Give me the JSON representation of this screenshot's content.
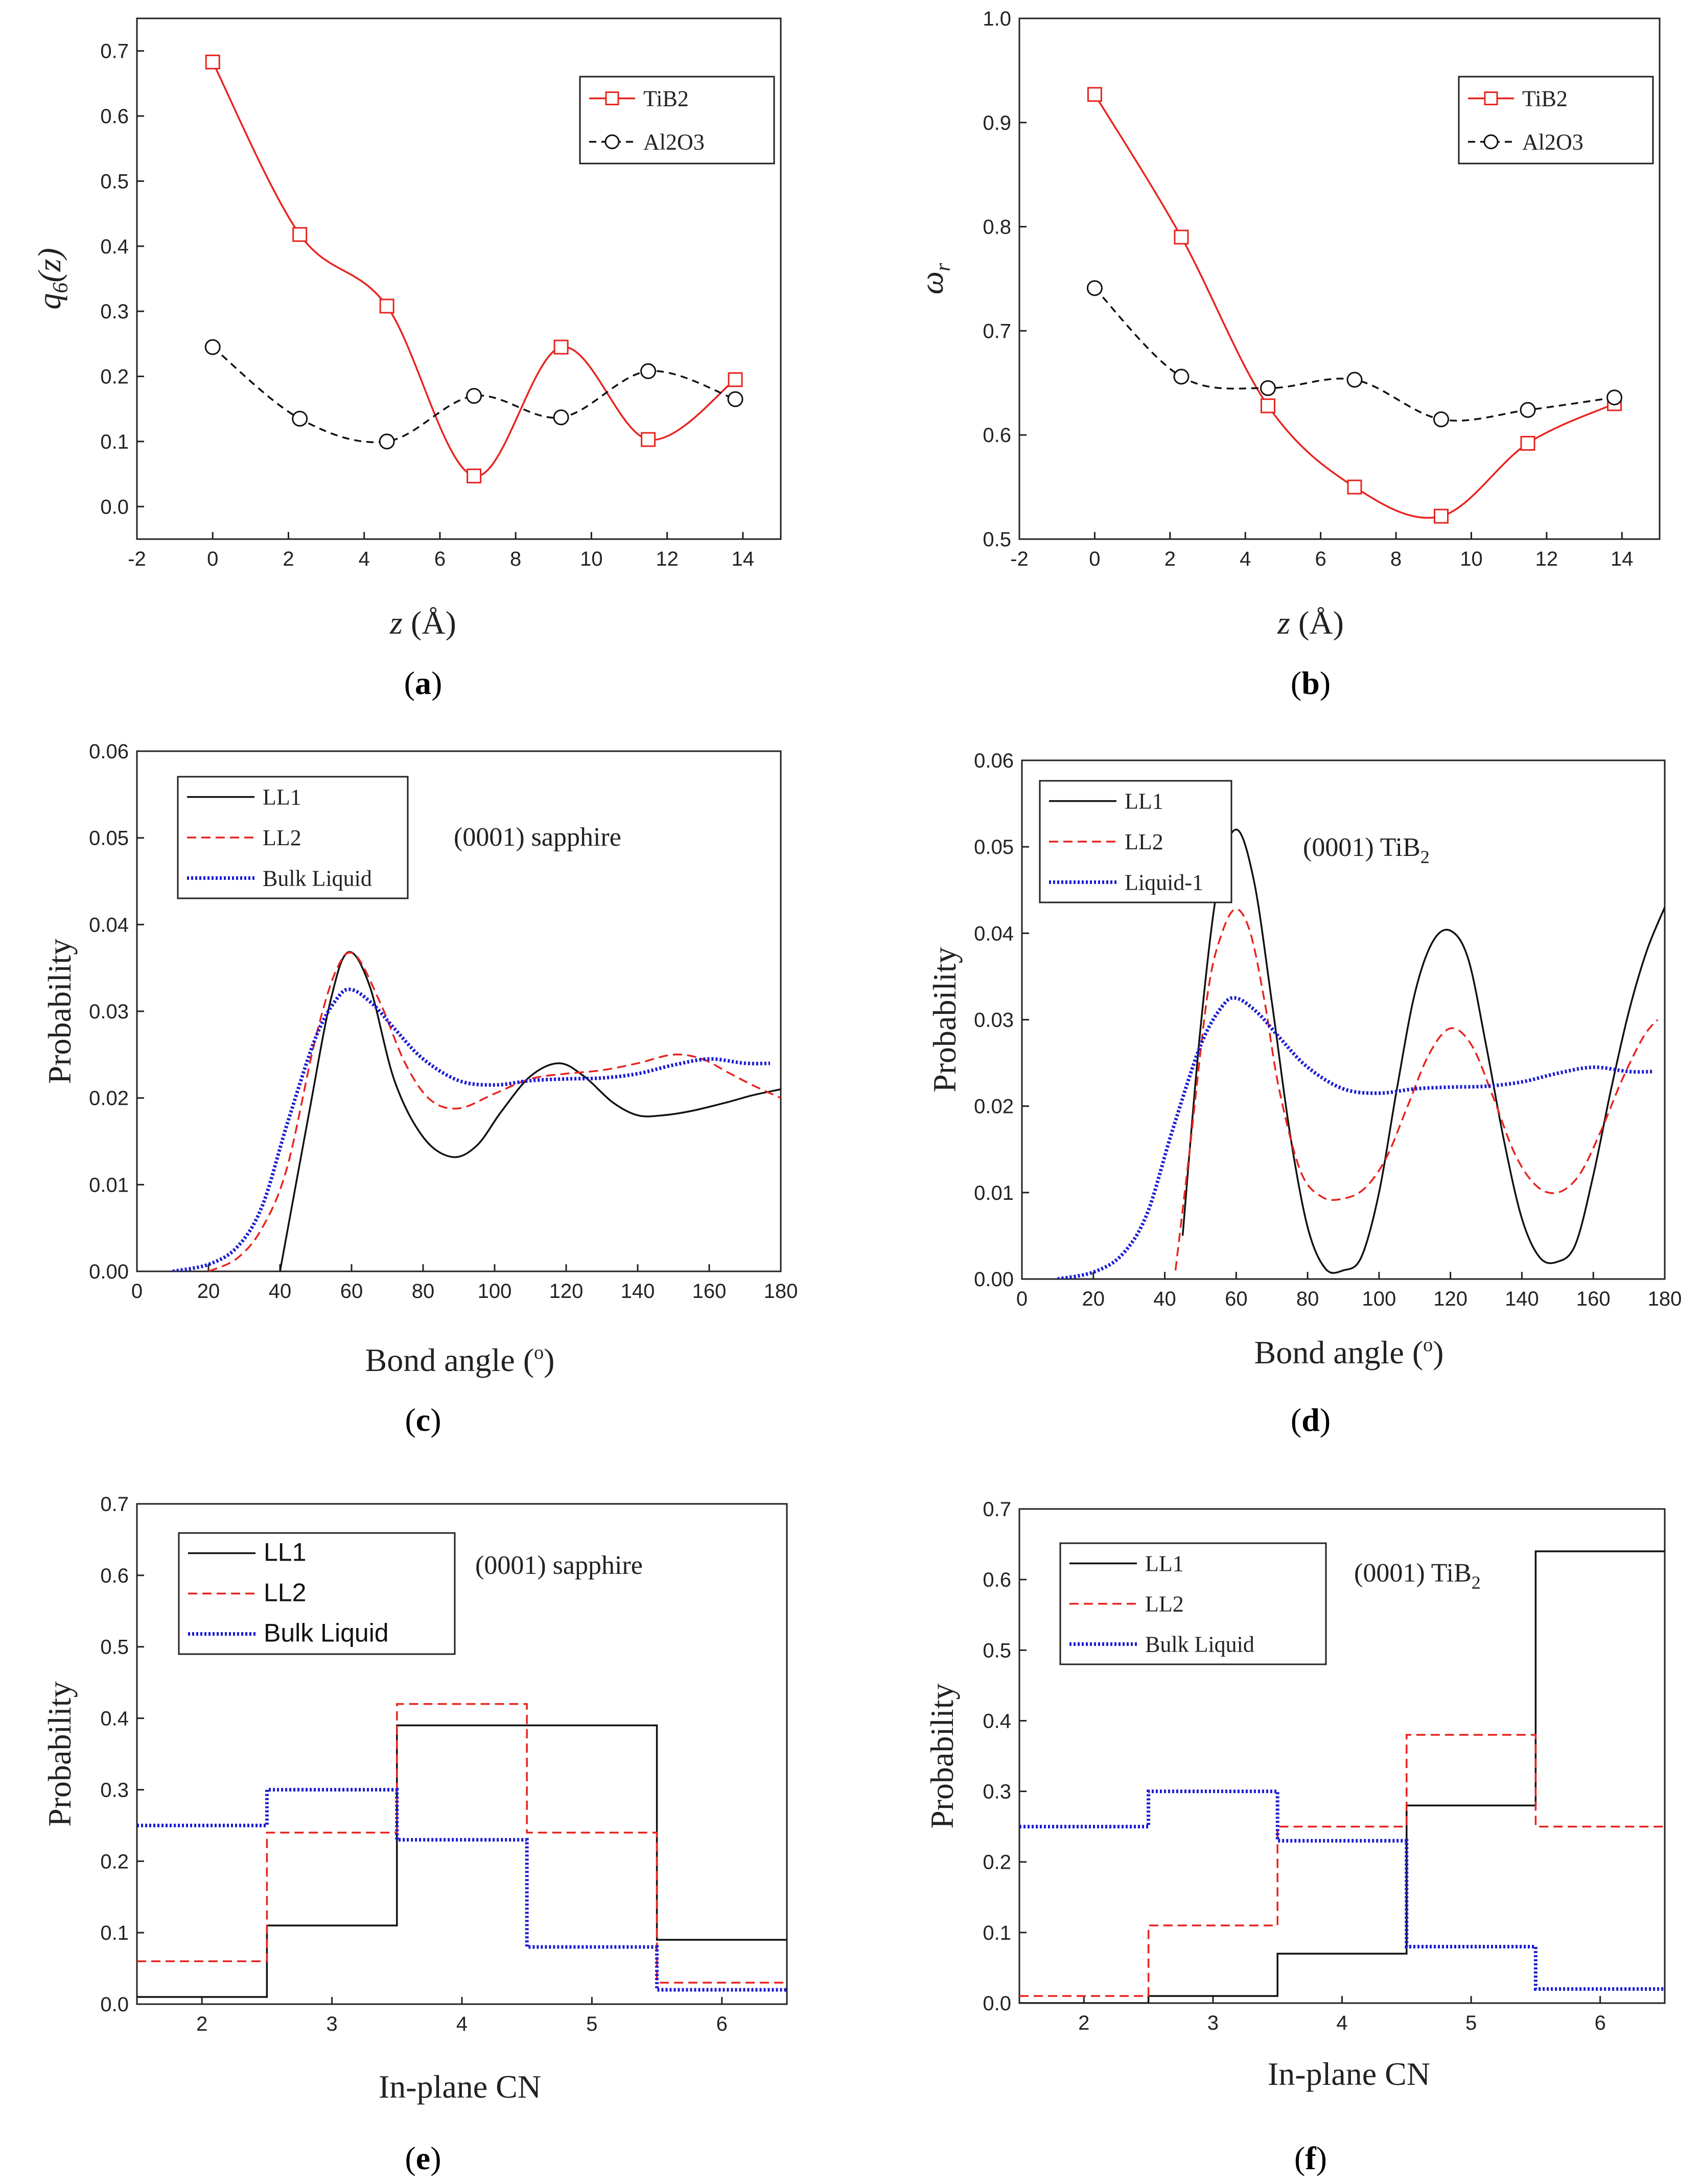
{
  "chart_data": [
    {
      "id": "a",
      "type": "line",
      "panel_label": "(a)",
      "xlabel_var": "z",
      "xlabel_unit": " (Å)",
      "ylabel_var": "q",
      "ylabel_sub": "6",
      "ylabel_rest": "(z)",
      "xlim": [
        -2,
        15
      ],
      "ylim": [
        -0.05,
        0.75
      ],
      "xticks": [
        -2,
        0,
        2,
        4,
        6,
        8,
        10,
        12,
        14
      ],
      "yticks": [
        0.0,
        0.1,
        0.2,
        0.3,
        0.4,
        0.5,
        0.6,
        0.7
      ],
      "ytick_labels": [
        "0.0",
        "0.1",
        "0.2",
        "0.3",
        "0.4",
        "0.5",
        "0.6",
        "0.7"
      ],
      "legend": [
        {
          "name": "TiB2",
          "color": "#e8231e",
          "dash": "",
          "marker": "square",
          "font": "serif"
        },
        {
          "name": "Al2O3",
          "color": "#111111",
          "dash": "14,10",
          "marker": "circle",
          "font": "serif"
        }
      ],
      "series": [
        {
          "name": "TiB2",
          "color": "#e8231e",
          "dash": "",
          "marker": "square",
          "smooth": true,
          "x": [
            0,
            2.3,
            4.6,
            6.9,
            9.2,
            11.5,
            13.8
          ],
          "y": [
            0.683,
            0.418,
            0.308,
            0.047,
            0.245,
            0.103,
            0.195
          ]
        },
        {
          "name": "Al2O3",
          "color": "#111111",
          "dash": "14,10",
          "marker": "circle",
          "smooth": true,
          "x": [
            0,
            2.3,
            4.6,
            6.9,
            9.2,
            11.5,
            13.8
          ],
          "y": [
            0.245,
            0.135,
            0.1,
            0.17,
            0.137,
            0.208,
            0.165
          ]
        }
      ]
    },
    {
      "id": "b",
      "type": "line",
      "panel_label": "(b)",
      "xlabel_var": "z",
      "xlabel_unit": " (Å)",
      "ylabel_var": "ω",
      "ylabel_sub": "r",
      "ylabel_rest": "",
      "xlim": [
        -2,
        15
      ],
      "ylim": [
        0.5,
        1.0
      ],
      "xticks": [
        -2,
        0,
        2,
        4,
        6,
        8,
        10,
        12,
        14
      ],
      "yticks": [
        0.5,
        0.6,
        0.7,
        0.8,
        0.9,
        1.0
      ],
      "ytick_labels": [
        "0.5",
        "0.6",
        "0.7",
        "0.8",
        "0.9",
        "1.0"
      ],
      "legend": [
        {
          "name": "TiB2",
          "color": "#e8231e",
          "dash": "",
          "marker": "square",
          "font": "serif"
        },
        {
          "name": "Al2O3",
          "color": "#111111",
          "dash": "14,10",
          "marker": "circle",
          "font": "serif"
        }
      ],
      "series": [
        {
          "name": "TiB2",
          "color": "#e8231e",
          "dash": "",
          "marker": "square",
          "smooth": true,
          "x": [
            0,
            2.3,
            4.6,
            6.9,
            9.2,
            11.5,
            13.8
          ],
          "y": [
            0.927,
            0.79,
            0.628,
            0.55,
            0.522,
            0.592,
            0.63
          ]
        },
        {
          "name": "Al2O3",
          "color": "#111111",
          "dash": "14,10",
          "marker": "circle",
          "smooth": true,
          "x": [
            0,
            2.3,
            4.6,
            6.9,
            9.2,
            11.5,
            13.8
          ],
          "y": [
            0.741,
            0.656,
            0.645,
            0.653,
            0.615,
            0.624,
            0.636
          ]
        }
      ]
    },
    {
      "id": "c",
      "type": "line",
      "panel_label": "(c)",
      "xlabel": "Bond angle (",
      "xlabel_sup": "o",
      "xlabel_end": ")",
      "ylabel": "Probability",
      "annotation": "(0001) sapphire",
      "annotation_sub": "",
      "xlim": [
        0,
        180
      ],
      "ylim": [
        0,
        0.06
      ],
      "xticks": [
        0,
        20,
        40,
        60,
        80,
        100,
        120,
        140,
        160,
        180
      ],
      "yticks": [
        0,
        0.01,
        0.02,
        0.03,
        0.04,
        0.05,
        0.06
      ],
      "ytick_labels": [
        "0.00",
        "0.01",
        "0.02",
        "0.03",
        "0.04",
        "0.05",
        "0.06"
      ],
      "legend": [
        {
          "name": "LL1",
          "color": "#111111",
          "dash": "",
          "font": "serif"
        },
        {
          "name": "LL2",
          "color": "#e8231e",
          "dash": "18,10",
          "font": "serif"
        },
        {
          "name": "Bulk Liquid",
          "color": "#1a1ad6",
          "dash": "4,4",
          "width": 7,
          "font": "serif"
        }
      ],
      "series": [
        {
          "name": "LL1",
          "color": "#111111",
          "dash": "",
          "width": 3.5,
          "smooth": true,
          "x": [
            40,
            48,
            54,
            59,
            65,
            72,
            80,
            88,
            95,
            102,
            110,
            118,
            125,
            133,
            140,
            147,
            155,
            165,
            172,
            180
          ],
          "y": [
            0,
            0.018,
            0.031,
            0.0368,
            0.033,
            0.022,
            0.0155,
            0.0132,
            0.0145,
            0.0185,
            0.0225,
            0.024,
            0.0225,
            0.0195,
            0.018,
            0.018,
            0.0185,
            0.0195,
            0.0203,
            0.021
          ]
        },
        {
          "name": "LL2",
          "color": "#e8231e",
          "dash": "18,10",
          "width": 3.5,
          "smooth": true,
          "x": [
            20,
            28,
            35,
            42,
            50,
            56,
            61,
            68,
            75,
            82,
            90,
            100,
            110,
            120,
            130,
            140,
            150,
            158,
            165,
            172,
            180
          ],
          "y": [
            0,
            0.0015,
            0.005,
            0.012,
            0.027,
            0.035,
            0.0365,
            0.031,
            0.024,
            0.0198,
            0.0188,
            0.0205,
            0.0222,
            0.0228,
            0.0232,
            0.024,
            0.025,
            0.0245,
            0.023,
            0.0215,
            0.02
          ]
        },
        {
          "name": "Bulk Liquid",
          "color": "#1a1ad6",
          "dash": "4,4",
          "width": 7,
          "smooth": true,
          "x": [
            10,
            20,
            28,
            35,
            42,
            50,
            56,
            60,
            66,
            72,
            80,
            90,
            100,
            110,
            120,
            130,
            140,
            150,
            160,
            170,
            177
          ],
          "y": [
            0,
            0.0008,
            0.0028,
            0.0075,
            0.017,
            0.027,
            0.0315,
            0.0325,
            0.0308,
            0.028,
            0.0245,
            0.022,
            0.0215,
            0.022,
            0.0222,
            0.0223,
            0.0228,
            0.0238,
            0.0245,
            0.024,
            0.024
          ]
        }
      ]
    },
    {
      "id": "d",
      "type": "line",
      "panel_label": "(d)",
      "xlabel": "Bond angle (",
      "xlabel_sup": "o",
      "xlabel_end": ")",
      "ylabel": "Probability",
      "annotation": "(0001) TiB",
      "annotation_sub": "2",
      "xlim": [
        0,
        180
      ],
      "ylim": [
        0,
        0.06
      ],
      "xticks": [
        0,
        20,
        40,
        60,
        80,
        100,
        120,
        140,
        160,
        180
      ],
      "yticks": [
        0,
        0.01,
        0.02,
        0.03,
        0.04,
        0.05,
        0.06
      ],
      "ytick_labels": [
        "0.00",
        "0.01",
        "0.02",
        "0.03",
        "0.04",
        "0.05",
        "0.06"
      ],
      "legend": [
        {
          "name": "LL1",
          "color": "#111111",
          "dash": "",
          "font": "serif"
        },
        {
          "name": "LL2",
          "color": "#e8231e",
          "dash": "18,10",
          "font": "serif"
        },
        {
          "name": "Liquid-1",
          "color": "#1a1ad6",
          "dash": "4,4",
          "width": 7,
          "font": "serif"
        }
      ],
      "series": [
        {
          "name": "LL1",
          "color": "#111111",
          "dash": "",
          "width": 3.5,
          "smooth": true,
          "x": [
            45,
            50,
            55,
            60,
            65,
            70,
            75,
            80,
            85,
            90,
            95,
            100,
            105,
            110,
            115,
            120,
            125,
            130,
            135,
            140,
            145,
            150,
            155,
            160,
            165,
            170,
            175,
            180
          ],
          "y": [
            0.005,
            0.029,
            0.046,
            0.052,
            0.046,
            0.032,
            0.017,
            0.006,
            0.0012,
            0.001,
            0.0025,
            0.01,
            0.022,
            0.033,
            0.039,
            0.0403,
            0.037,
            0.027,
            0.016,
            0.007,
            0.0025,
            0.002,
            0.004,
            0.012,
            0.022,
            0.031,
            0.038,
            0.043
          ]
        },
        {
          "name": "LL2",
          "color": "#e8231e",
          "dash": "18,10",
          "width": 3.5,
          "smooth": true,
          "x": [
            43,
            47,
            52,
            56,
            60,
            64,
            68,
            72,
            78,
            84,
            90,
            96,
            102,
            108,
            114,
            120,
            126,
            132,
            138,
            144,
            150,
            156,
            162,
            168,
            174,
            178
          ],
          "y": [
            0.001,
            0.015,
            0.033,
            0.04,
            0.0428,
            0.04,
            0.032,
            0.022,
            0.0125,
            0.0095,
            0.0093,
            0.0105,
            0.014,
            0.02,
            0.026,
            0.029,
            0.027,
            0.021,
            0.0145,
            0.0108,
            0.01,
            0.012,
            0.017,
            0.023,
            0.028,
            0.03
          ]
        },
        {
          "name": "Liquid-1",
          "color": "#1a1ad6",
          "dash": "4,4",
          "width": 7,
          "smooth": true,
          "x": [
            10,
            20,
            28,
            35,
            42,
            50,
            56,
            60,
            66,
            72,
            80,
            90,
            100,
            110,
            120,
            130,
            140,
            150,
            160,
            170,
            177
          ],
          "y": [
            0,
            0.0008,
            0.0028,
            0.0075,
            0.017,
            0.027,
            0.0315,
            0.0325,
            0.0308,
            0.028,
            0.0245,
            0.022,
            0.0215,
            0.022,
            0.0222,
            0.0223,
            0.0228,
            0.0238,
            0.0245,
            0.024,
            0.024
          ]
        }
      ]
    },
    {
      "id": "e",
      "type": "step",
      "panel_label": "(e)",
      "xlabel": "In-plane CN",
      "ylabel": "Probability",
      "annotation": "(0001) sapphire",
      "annotation_sub": "",
      "xlim": [
        1.5,
        6.5
      ],
      "ylim": [
        0,
        0.7
      ],
      "xticks": [
        2,
        3,
        4,
        5,
        6
      ],
      "yticks": [
        0.0,
        0.1,
        0.2,
        0.3,
        0.4,
        0.5,
        0.6,
        0.7
      ],
      "ytick_labels": [
        "0.0",
        "0.1",
        "0.2",
        "0.3",
        "0.4",
        "0.5",
        "0.6",
        "0.7"
      ],
      "legend": [
        {
          "name": "LL1",
          "color": "#111111",
          "dash": "",
          "font": "sans"
        },
        {
          "name": "LL2",
          "color": "#e8231e",
          "dash": "18,10",
          "font": "sans"
        },
        {
          "name": "Bulk Liquid",
          "color": "#1a1ad6",
          "dash": "4,4",
          "width": 7,
          "font": "sans"
        }
      ],
      "categories": [
        2,
        3,
        4,
        5,
        6
      ],
      "series": [
        {
          "name": "LL1",
          "color": "#111111",
          "dash": "",
          "width": 3.5,
          "values": [
            0.01,
            0.11,
            0.39,
            0.39,
            0.09
          ]
        },
        {
          "name": "LL2",
          "color": "#e8231e",
          "dash": "18,10",
          "width": 3.5,
          "values": [
            0.06,
            0.24,
            0.42,
            0.24,
            0.03
          ]
        },
        {
          "name": "Bulk Liquid",
          "color": "#1a1ad6",
          "dash": "4,4",
          "width": 7,
          "values": [
            0.25,
            0.3,
            0.23,
            0.08,
            0.02
          ]
        }
      ]
    },
    {
      "id": "f",
      "type": "step",
      "panel_label": "(f)",
      "xlabel": "In-plane CN",
      "ylabel": "Probability",
      "annotation": "(0001) TiB",
      "annotation_sub": "2",
      "xlim": [
        1.5,
        6.5
      ],
      "ylim": [
        0,
        0.7
      ],
      "xticks": [
        2,
        3,
        4,
        5,
        6
      ],
      "yticks": [
        0.0,
        0.1,
        0.2,
        0.3,
        0.4,
        0.5,
        0.6,
        0.7
      ],
      "ytick_labels": [
        "0.0",
        "0.1",
        "0.2",
        "0.3",
        "0.4",
        "0.5",
        "0.6",
        "0.7"
      ],
      "legend": [
        {
          "name": "LL1",
          "color": "#111111",
          "dash": "",
          "font": "serif"
        },
        {
          "name": "LL2",
          "color": "#e8231e",
          "dash": "18,10",
          "font": "serif"
        },
        {
          "name": "Bulk Liquid",
          "color": "#1a1ad6",
          "dash": "4,4",
          "width": 7,
          "font": "serif"
        }
      ],
      "categories": [
        2,
        3,
        4,
        5,
        6
      ],
      "series": [
        {
          "name": "LL1",
          "color": "#111111",
          "dash": "",
          "width": 3.5,
          "values": [
            0.0,
            0.01,
            0.07,
            0.28,
            0.64
          ]
        },
        {
          "name": "LL2",
          "color": "#e8231e",
          "dash": "18,10",
          "width": 3.5,
          "values": [
            0.01,
            0.11,
            0.25,
            0.38,
            0.25
          ]
        },
        {
          "name": "Bulk Liquid",
          "color": "#1a1ad6",
          "dash": "4,4",
          "width": 7,
          "values": [
            0.25,
            0.3,
            0.23,
            0.08,
            0.02
          ]
        }
      ]
    }
  ]
}
